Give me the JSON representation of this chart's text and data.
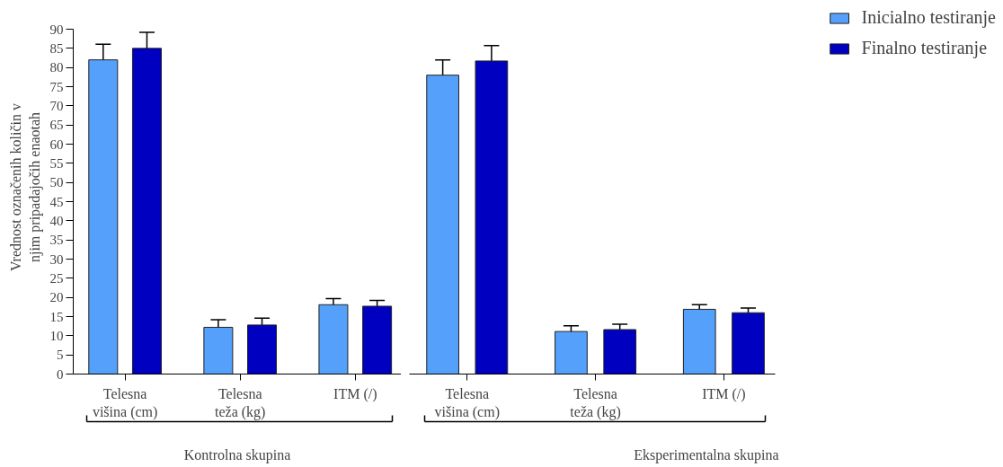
{
  "chart_data": [
    {
      "type": "bar",
      "xlabel": "Kontrolna skupina",
      "ylabel": "Vrednost označenih količin v njim pripadajočih enaotah",
      "categories": [
        "Telesna višina (cm)",
        "Telesna teža (kg)",
        "ITM (/)"
      ],
      "series": [
        {
          "color": "#55a0fa",
          "values": [
            82,
            12.2,
            18.1
          ],
          "errors": [
            4.1,
            2,
            1.6
          ]
        },
        {
          "color": "#0000c0",
          "values": [
            85,
            12.8,
            17.7
          ],
          "errors": [
            4.2,
            1.8,
            1.5
          ]
        }
      ],
      "ylim": [
        0,
        90
      ],
      "yticks": [
        0,
        5,
        10,
        15,
        20,
        25,
        30,
        35,
        40,
        45,
        50,
        55,
        60,
        65,
        70,
        75,
        80,
        85,
        90
      ]
    },
    {
      "type": "bar",
      "xlabel": "Eksperimentalna skupina",
      "categories": [
        "Telesna višina (cm)",
        "Telesna teža (kg)",
        "ITM (/)"
      ],
      "series": [
        {
          "name": "Inicialno testiranje",
          "color": "#55a0fa",
          "values": [
            78,
            11.1,
            16.9
          ],
          "errors": [
            4,
            1.5,
            1.2
          ]
        },
        {
          "name": "Finalno testiranje",
          "color": "#0000c0",
          "values": [
            81.7,
            11.6,
            16
          ],
          "errors": [
            4,
            1.4,
            1.2
          ]
        }
      ],
      "ylim": [
        0,
        90
      ],
      "yticks": [
        0,
        5,
        10,
        15,
        20,
        25,
        30,
        35,
        40,
        45,
        50,
        55,
        60,
        65,
        70,
        75,
        80,
        85,
        90
      ],
      "tick_labels": "x",
      "legend": "top right"
    }
  ]
}
